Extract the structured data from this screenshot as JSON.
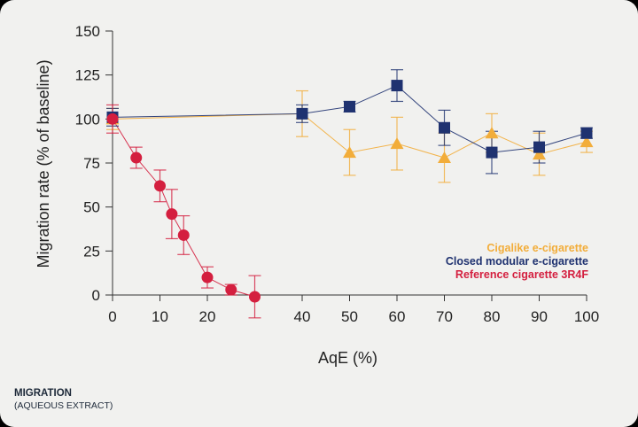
{
  "caption": {
    "title": "MIGRATION",
    "subtitle": "(AQUEOUS EXTRACT)"
  },
  "chart_data": {
    "type": "line",
    "title": "",
    "xlabel": "AqE (%)",
    "ylabel": "Migration rate (% of baseline)",
    "xlim": [
      0,
      100
    ],
    "ylim": [
      0,
      150
    ],
    "xticks": [
      0,
      10,
      20,
      40,
      50,
      60,
      70,
      80,
      90,
      100
    ],
    "yticks": [
      0,
      25,
      50,
      75,
      100,
      125,
      150
    ],
    "grid": false,
    "legend_position": "bottom-right",
    "series": [
      {
        "name": "Cigalike e-cigarette",
        "color": "#f2ad3a",
        "marker": "triangle",
        "x": [
          0,
          40,
          50,
          60,
          70,
          80,
          90,
          100
        ],
        "y": [
          100,
          103,
          81,
          86,
          78,
          92,
          80,
          87
        ],
        "err": [
          6,
          13,
          13,
          15,
          14,
          11,
          12,
          6
        ]
      },
      {
        "name": "Closed modular e-cigarette",
        "color": "#1f3270",
        "marker": "square",
        "x": [
          0,
          40,
          50,
          60,
          70,
          80,
          90,
          100
        ],
        "y": [
          101,
          103,
          107,
          119,
          95,
          81,
          84,
          92
        ],
        "err": [
          5,
          5,
          3,
          9,
          10,
          12,
          9,
          3
        ]
      },
      {
        "name": "Reference cigarette 3R4F",
        "color": "#d41f3f",
        "marker": "circle",
        "x": [
          0,
          5,
          10,
          12.5,
          15,
          20,
          25,
          30
        ],
        "y": [
          100,
          78,
          62,
          46,
          34,
          10,
          3,
          -1
        ],
        "err": [
          8,
          6,
          9,
          14,
          11,
          6,
          3,
          12
        ]
      }
    ]
  }
}
